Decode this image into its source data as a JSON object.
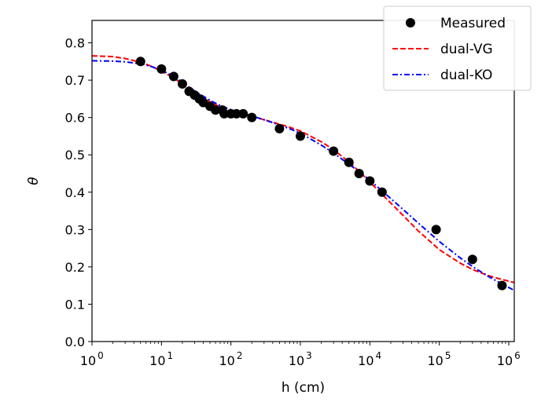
{
  "chart_data": {
    "type": "scatter",
    "xscale": "log",
    "xlabel": "h (cm)",
    "ylabel": "θ",
    "xlim": [
      1,
      1200000
    ],
    "ylim": [
      0.0,
      0.86
    ],
    "x_ticks": [
      {
        "value": 1,
        "base": "10",
        "exp": "0"
      },
      {
        "value": 10,
        "base": "10",
        "exp": "1"
      },
      {
        "value": 100,
        "base": "10",
        "exp": "2"
      },
      {
        "value": 1000,
        "base": "10",
        "exp": "3"
      },
      {
        "value": 10000,
        "base": "10",
        "exp": "4"
      },
      {
        "value": 100000,
        "base": "10",
        "exp": "5"
      },
      {
        "value": 1000000,
        "base": "10",
        "exp": "6"
      }
    ],
    "y_ticks": [
      {
        "value": 0.0,
        "label": "0.0"
      },
      {
        "value": 0.1,
        "label": "0.1"
      },
      {
        "value": 0.2,
        "label": "0.2"
      },
      {
        "value": 0.3,
        "label": "0.3"
      },
      {
        "value": 0.4,
        "label": "0.4"
      },
      {
        "value": 0.5,
        "label": "0.5"
      },
      {
        "value": 0.6,
        "label": "0.6"
      },
      {
        "value": 0.7,
        "label": "0.7"
      },
      {
        "value": 0.8,
        "label": "0.8"
      }
    ],
    "legend_position": "top-right",
    "series": [
      {
        "name": "Measured",
        "kind": "markers",
        "color": "#000000",
        "points": [
          [
            5,
            0.75
          ],
          [
            10,
            0.73
          ],
          [
            15,
            0.71
          ],
          [
            20,
            0.69
          ],
          [
            25,
            0.67
          ],
          [
            30,
            0.66
          ],
          [
            35,
            0.65
          ],
          [
            40,
            0.64
          ],
          [
            50,
            0.63
          ],
          [
            60,
            0.62
          ],
          [
            75,
            0.62
          ],
          [
            80,
            0.61
          ],
          [
            100,
            0.61
          ],
          [
            120,
            0.61
          ],
          [
            150,
            0.61
          ],
          [
            200,
            0.6
          ],
          [
            500,
            0.57
          ],
          [
            1000,
            0.55
          ],
          [
            3000,
            0.51
          ],
          [
            5000,
            0.48
          ],
          [
            7000,
            0.45
          ],
          [
            10000,
            0.43
          ],
          [
            15000,
            0.4
          ],
          [
            90000,
            0.3
          ],
          [
            300000,
            0.22
          ],
          [
            800000,
            0.15
          ]
        ]
      },
      {
        "name": "dual-VG",
        "kind": "line",
        "style": "dashed",
        "color": "#ff0000",
        "points": [
          [
            1,
            0.765
          ],
          [
            2,
            0.763
          ],
          [
            3,
            0.758
          ],
          [
            5,
            0.748
          ],
          [
            7,
            0.738
          ],
          [
            10,
            0.724
          ],
          [
            15,
            0.706
          ],
          [
            20,
            0.69
          ],
          [
            30,
            0.668
          ],
          [
            50,
            0.642
          ],
          [
            70,
            0.628
          ],
          [
            100,
            0.617
          ],
          [
            150,
            0.608
          ],
          [
            200,
            0.603
          ],
          [
            300,
            0.594
          ],
          [
            500,
            0.582
          ],
          [
            700,
            0.574
          ],
          [
            1000,
            0.564
          ],
          [
            2000,
            0.535
          ],
          [
            3000,
            0.514
          ],
          [
            5000,
            0.481
          ],
          [
            7000,
            0.456
          ],
          [
            10000,
            0.427
          ],
          [
            20000,
            0.371
          ],
          [
            30000,
            0.338
          ],
          [
            50000,
            0.296
          ],
          [
            100000,
            0.246
          ],
          [
            200000,
            0.21
          ],
          [
            300000,
            0.193
          ],
          [
            500000,
            0.177
          ],
          [
            700000,
            0.169
          ],
          [
            1200000,
            0.158
          ]
        ]
      },
      {
        "name": "dual-KO",
        "kind": "line",
        "style": "dashdot",
        "color": "#0000ff",
        "points": [
          [
            1,
            0.752
          ],
          [
            2,
            0.751
          ],
          [
            3,
            0.749
          ],
          [
            5,
            0.744
          ],
          [
            7,
            0.737
          ],
          [
            10,
            0.727
          ],
          [
            15,
            0.71
          ],
          [
            20,
            0.694
          ],
          [
            30,
            0.671
          ],
          [
            50,
            0.646
          ],
          [
            70,
            0.632
          ],
          [
            100,
            0.621
          ],
          [
            150,
            0.611
          ],
          [
            200,
            0.604
          ],
          [
            300,
            0.594
          ],
          [
            500,
            0.58
          ],
          [
            700,
            0.57
          ],
          [
            1000,
            0.558
          ],
          [
            2000,
            0.526
          ],
          [
            3000,
            0.505
          ],
          [
            5000,
            0.475
          ],
          [
            7000,
            0.455
          ],
          [
            10000,
            0.432
          ],
          [
            20000,
            0.383
          ],
          [
            30000,
            0.354
          ],
          [
            50000,
            0.317
          ],
          [
            100000,
            0.268
          ],
          [
            200000,
            0.224
          ],
          [
            300000,
            0.201
          ],
          [
            500000,
            0.175
          ],
          [
            700000,
            0.16
          ],
          [
            1200000,
            0.137
          ]
        ]
      }
    ]
  }
}
